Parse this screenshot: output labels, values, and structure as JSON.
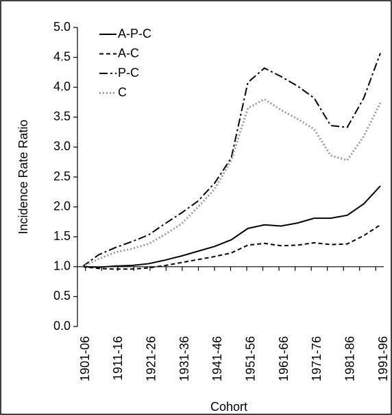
{
  "chart_data": {
    "type": "line",
    "y_label": "Incidence Rate Ratio",
    "x_label": "Cohort",
    "categories": [
      "1901-06",
      null,
      "1911-16",
      null,
      "1921-26",
      null,
      "1931-36",
      null,
      "1941-46",
      null,
      "1951-56",
      null,
      "1961-66",
      null,
      "1971-76",
      null,
      "1981-86",
      null,
      "1991-96"
    ],
    "series": [
      {
        "name": "A-P-C",
        "color": "#000000",
        "dash": "solid",
        "values": [
          1.0,
          0.99,
          1.01,
          1.02,
          1.05,
          1.11,
          1.18,
          1.26,
          1.34,
          1.45,
          1.64,
          1.7,
          1.68,
          1.73,
          1.81,
          1.81,
          1.86,
          2.05,
          2.35
        ]
      },
      {
        "name": "A-C",
        "color": "#000000",
        "dash": "dashed",
        "values": [
          1.0,
          0.97,
          0.96,
          0.96,
          0.98,
          1.02,
          1.07,
          1.12,
          1.17,
          1.23,
          1.36,
          1.39,
          1.35,
          1.36,
          1.4,
          1.37,
          1.38,
          1.52,
          1.7
        ]
      },
      {
        "name": "P-C",
        "color": "#000000",
        "dash": "dashdot",
        "values": [
          1.0,
          1.2,
          1.32,
          1.42,
          1.53,
          1.72,
          1.9,
          2.1,
          2.4,
          2.82,
          4.08,
          4.32,
          4.18,
          4.02,
          3.82,
          3.36,
          3.33,
          3.82,
          4.57
        ]
      },
      {
        "name": "C",
        "color": "#999999",
        "dash": "dotted",
        "values": [
          1.0,
          1.13,
          1.24,
          1.3,
          1.38,
          1.54,
          1.72,
          2.0,
          2.3,
          2.78,
          3.65,
          3.8,
          3.62,
          3.47,
          3.3,
          2.86,
          2.78,
          3.18,
          3.74
        ]
      }
    ],
    "ylim": [
      0,
      5
    ],
    "yticks": [
      {
        "value": 0,
        "label": "0.0"
      },
      {
        "value": 0.5,
        "label": "0.5"
      },
      {
        "value": 1,
        "label": "1.0"
      },
      {
        "value": 1.5,
        "label": "1.5"
      },
      {
        "value": 2,
        "label": "2.0"
      },
      {
        "value": 2.5,
        "label": "2.5"
      },
      {
        "value": 3,
        "label": "3.0"
      },
      {
        "value": 3.5,
        "label": "3.5"
      },
      {
        "value": 4,
        "label": "4.0"
      },
      {
        "value": 4.5,
        "label": "4.5"
      },
      {
        "value": 5,
        "label": "5.0"
      }
    ],
    "x_axis_at": 1,
    "grid": false,
    "legend": "top-left"
  }
}
